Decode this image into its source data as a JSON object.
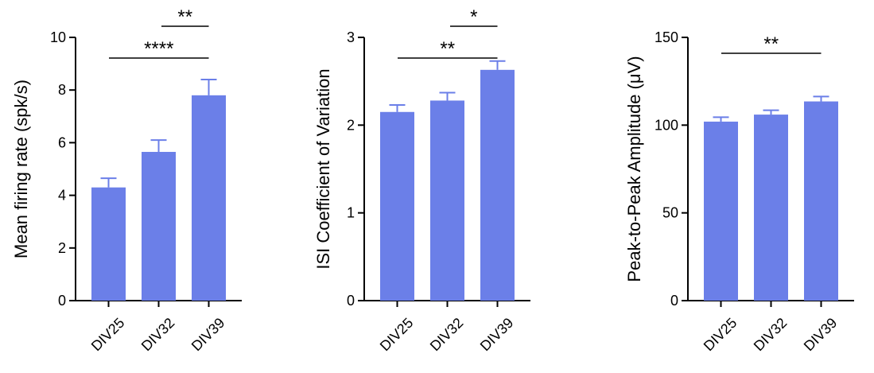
{
  "style": {
    "bar_color": "#6B7FE8",
    "axis_color": "#000000"
  },
  "chart_data": [
    {
      "type": "bar",
      "categories": [
        "DIV25",
        "DIV32",
        "DIV39"
      ],
      "values": [
        4.3,
        5.65,
        7.8
      ],
      "errors": [
        0.35,
        0.45,
        0.6
      ],
      "title": "",
      "xlabel": "",
      "ylabel": "Mean firing rate (spk/s)",
      "ylim": [
        0,
        10
      ],
      "yticks": [
        0,
        2,
        4,
        6,
        8,
        10
      ],
      "significance": [
        {
          "from": 0,
          "to": 2,
          "label": "****"
        },
        {
          "from": 1,
          "to": 2,
          "label": "**"
        }
      ]
    },
    {
      "type": "bar",
      "categories": [
        "DIV25",
        "DIV32",
        "DIV39"
      ],
      "values": [
        2.15,
        2.28,
        2.63
      ],
      "errors": [
        0.08,
        0.09,
        0.1
      ],
      "title": "",
      "xlabel": "",
      "ylabel": "ISI Coefficient of Variation",
      "ylim": [
        0,
        3
      ],
      "yticks": [
        0,
        1,
        2,
        3
      ],
      "significance": [
        {
          "from": 0,
          "to": 2,
          "label": "**"
        },
        {
          "from": 1,
          "to": 2,
          "label": "*"
        }
      ]
    },
    {
      "type": "bar",
      "categories": [
        "DIV25",
        "DIV32",
        "DIV39"
      ],
      "values": [
        102,
        106,
        113.5
      ],
      "errors": [
        2.5,
        2.5,
        2.8
      ],
      "title": "",
      "xlabel": "",
      "ylabel": "Peak-to-Peak Amplitude (μV)",
      "ylim": [
        0,
        150
      ],
      "yticks": [
        0,
        50,
        100,
        150
      ],
      "significance": [
        {
          "from": 0,
          "to": 2,
          "label": "**"
        }
      ]
    }
  ]
}
